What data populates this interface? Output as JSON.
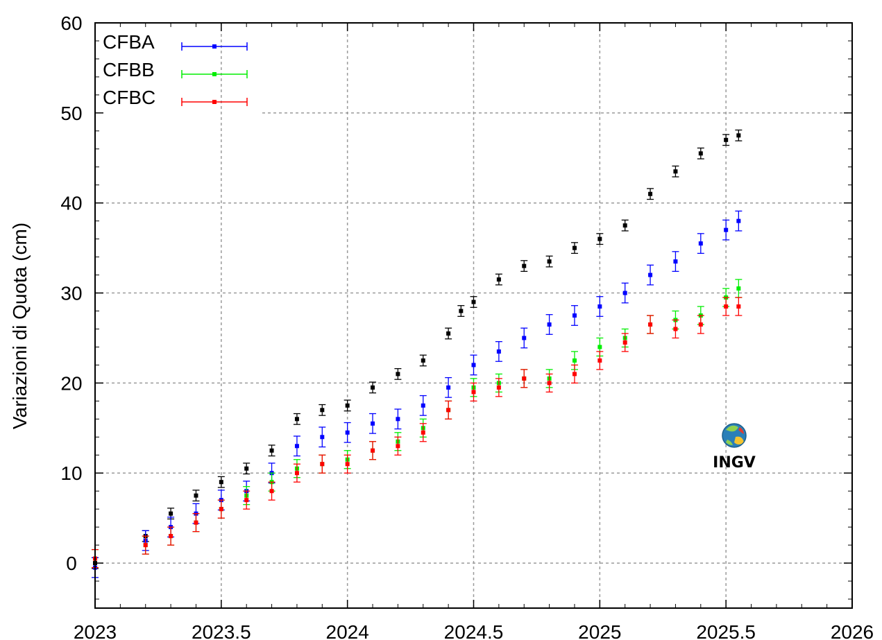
{
  "chart_data": {
    "type": "scatter",
    "title": "",
    "xlabel": "",
    "ylabel": "Variazioni di Quota (cm)",
    "xlim": [
      2023,
      2026
    ],
    "ylim": [
      -5,
      60
    ],
    "xticks": [
      2023,
      2023.5,
      2024,
      2024.5,
      2025,
      2025.5,
      2026
    ],
    "xtick_labels": [
      "2023",
      "2023.5",
      "2024",
      "2024.5",
      "2025",
      "2025.5",
      "2026"
    ],
    "yticks": [
      0,
      10,
      20,
      30,
      40,
      50,
      60
    ],
    "ytick_labels": [
      "0",
      "10",
      "20",
      "30",
      "40",
      "50",
      "60"
    ],
    "grid": true,
    "legend_position": "top-left",
    "error_bars": true,
    "series": [
      {
        "name": "",
        "color": "#000000",
        "error": 0.6,
        "points": [
          [
            2023.0,
            0.0
          ],
          [
            2023.2,
            3.0
          ],
          [
            2023.3,
            5.5
          ],
          [
            2023.4,
            7.5
          ],
          [
            2023.5,
            9.0
          ],
          [
            2023.6,
            10.5
          ],
          [
            2023.7,
            12.5
          ],
          [
            2023.8,
            16.0
          ],
          [
            2023.9,
            17.0
          ],
          [
            2024.0,
            17.5
          ],
          [
            2024.1,
            19.5
          ],
          [
            2024.2,
            21.0
          ],
          [
            2024.3,
            22.5
          ],
          [
            2024.4,
            25.5
          ],
          [
            2024.45,
            28.0
          ],
          [
            2024.5,
            29.0
          ],
          [
            2024.6,
            31.5
          ],
          [
            2024.7,
            33.0
          ],
          [
            2024.8,
            33.5
          ],
          [
            2024.9,
            35.0
          ],
          [
            2025.0,
            36.0
          ],
          [
            2025.1,
            37.5
          ],
          [
            2025.2,
            41.0
          ],
          [
            2025.3,
            43.5
          ],
          [
            2025.4,
            45.5
          ],
          [
            2025.5,
            47.0
          ],
          [
            2025.55,
            47.5
          ]
        ]
      },
      {
        "name": "CFBA",
        "color": "#0000ff",
        "error": 1.1,
        "points": [
          [
            2023.0,
            -0.5
          ],
          [
            2023.2,
            2.5
          ],
          [
            2023.3,
            4.0
          ],
          [
            2023.4,
            5.5
          ],
          [
            2023.5,
            7.0
          ],
          [
            2023.6,
            8.0
          ],
          [
            2023.7,
            10.0
          ],
          [
            2023.8,
            13.0
          ],
          [
            2023.9,
            14.0
          ],
          [
            2024.0,
            14.5
          ],
          [
            2024.1,
            15.5
          ],
          [
            2024.2,
            16.0
          ],
          [
            2024.3,
            17.5
          ],
          [
            2024.4,
            19.5
          ],
          [
            2024.5,
            22.0
          ],
          [
            2024.6,
            23.5
          ],
          [
            2024.7,
            25.0
          ],
          [
            2024.8,
            26.5
          ],
          [
            2024.9,
            27.5
          ],
          [
            2025.0,
            28.5
          ],
          [
            2025.1,
            30.0
          ],
          [
            2025.2,
            32.0
          ],
          [
            2025.3,
            33.5
          ],
          [
            2025.4,
            35.5
          ],
          [
            2025.5,
            37.0
          ],
          [
            2025.55,
            38.0
          ]
        ]
      },
      {
        "name": "CFBB",
        "color": "#00ee00",
        "error": 1.0,
        "points": [
          [
            2023.0,
            0.5
          ],
          [
            2023.2,
            2.0
          ],
          [
            2023.3,
            3.0
          ],
          [
            2023.4,
            4.5
          ],
          [
            2023.5,
            6.0
          ],
          [
            2023.6,
            7.5
          ],
          [
            2023.7,
            9.0
          ],
          [
            2023.8,
            10.5
          ],
          [
            2023.9,
            11.0
          ],
          [
            2024.0,
            11.5
          ],
          [
            2024.1,
            12.5
          ],
          [
            2024.2,
            13.5
          ],
          [
            2024.3,
            15.0
          ],
          [
            2024.4,
            17.0
          ],
          [
            2024.5,
            19.5
          ],
          [
            2024.6,
            20.0
          ],
          [
            2024.7,
            20.5
          ],
          [
            2024.8,
            20.5
          ],
          [
            2024.9,
            22.5
          ],
          [
            2025.0,
            24.0
          ],
          [
            2025.1,
            25.0
          ],
          [
            2025.2,
            26.5
          ],
          [
            2025.3,
            27.0
          ],
          [
            2025.4,
            27.5
          ],
          [
            2025.5,
            29.5
          ],
          [
            2025.55,
            30.5
          ]
        ]
      },
      {
        "name": "CFBC",
        "color": "#ff0000",
        "error": 1.0,
        "points": [
          [
            2023.0,
            0.5
          ],
          [
            2023.2,
            2.0
          ],
          [
            2023.3,
            3.0
          ],
          [
            2023.4,
            4.5
          ],
          [
            2023.5,
            6.0
          ],
          [
            2023.6,
            7.0
          ],
          [
            2023.7,
            8.0
          ],
          [
            2023.8,
            10.0
          ],
          [
            2023.9,
            11.0
          ],
          [
            2024.0,
            11.0
          ],
          [
            2024.1,
            12.5
          ],
          [
            2024.2,
            13.0
          ],
          [
            2024.3,
            14.5
          ],
          [
            2024.4,
            17.0
          ],
          [
            2024.5,
            19.0
          ],
          [
            2024.6,
            19.5
          ],
          [
            2024.7,
            20.5
          ],
          [
            2024.8,
            20.0
          ],
          [
            2024.9,
            21.0
          ],
          [
            2025.0,
            22.5
          ],
          [
            2025.1,
            24.5
          ],
          [
            2025.2,
            26.5
          ],
          [
            2025.3,
            26.0
          ],
          [
            2025.4,
            26.5
          ],
          [
            2025.5,
            28.5
          ],
          [
            2025.55,
            28.5
          ]
        ]
      }
    ]
  },
  "logo": {
    "text": "INGV"
  }
}
